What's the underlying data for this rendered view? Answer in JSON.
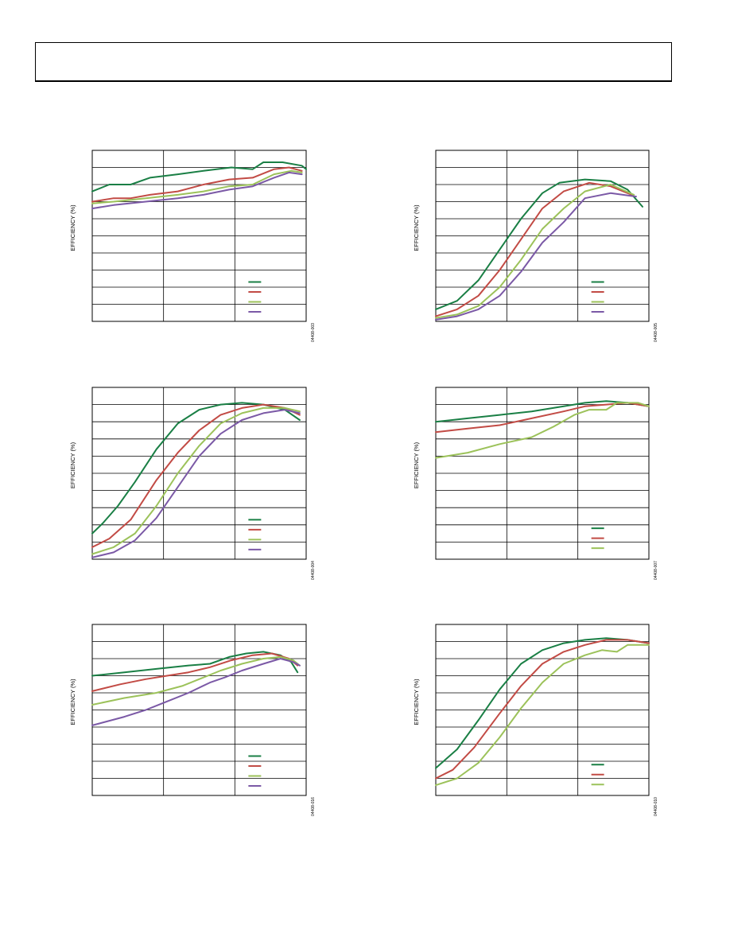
{
  "colors": {
    "green": "#1a7f45",
    "red": "#c24b45",
    "lime": "#9cc25a",
    "purple": "#7b59a6",
    "grid": "#000000"
  },
  "chart_data": [
    {
      "type": "line",
      "ylabel": "EFFICIENCY (%)",
      "figure_code": "04408-003",
      "series": [
        {
          "color": "green",
          "points": [
            [
              0,
              76
            ],
            [
              0.08,
              80
            ],
            [
              0.18,
              80
            ],
            [
              0.27,
              84
            ],
            [
              0.4,
              86
            ],
            [
              0.52,
              88
            ],
            [
              0.65,
              90
            ],
            [
              0.75,
              89
            ],
            [
              0.8,
              93
            ],
            [
              0.89,
              93
            ],
            [
              0.98,
              91
            ],
            [
              1,
              89
            ]
          ]
        },
        {
          "color": "red",
          "points": [
            [
              0,
              70
            ],
            [
              0.1,
              72
            ],
            [
              0.18,
              72
            ],
            [
              0.27,
              74
            ],
            [
              0.4,
              76
            ],
            [
              0.52,
              80
            ],
            [
              0.64,
              83
            ],
            [
              0.75,
              84
            ],
            [
              0.85,
              89
            ],
            [
              0.92,
              90
            ],
            [
              0.98,
              88
            ]
          ]
        },
        {
          "color": "lime",
          "points": [
            [
              0,
              69
            ],
            [
              0.1,
              70
            ],
            [
              0.25,
              72
            ],
            [
              0.4,
              74
            ],
            [
              0.52,
              76
            ],
            [
              0.64,
              79
            ],
            [
              0.75,
              80
            ],
            [
              0.85,
              86
            ],
            [
              0.93,
              88
            ],
            [
              0.98,
              87
            ]
          ]
        },
        {
          "color": "purple",
          "points": [
            [
              0,
              66
            ],
            [
              0.1,
              68
            ],
            [
              0.25,
              70
            ],
            [
              0.4,
              72
            ],
            [
              0.52,
              74
            ],
            [
              0.64,
              77
            ],
            [
              0.75,
              79
            ],
            [
              0.85,
              84
            ],
            [
              0.92,
              87
            ],
            [
              0.98,
              86
            ]
          ]
        }
      ],
      "legend": {
        "entries": 4,
        "position": "bottom-right"
      }
    },
    {
      "type": "line",
      "ylabel": "EFFICIENCY (%)",
      "figure_code": "04408-005",
      "series": [
        {
          "color": "green",
          "points": [
            [
              0,
              7
            ],
            [
              0.1,
              12
            ],
            [
              0.2,
              24
            ],
            [
              0.3,
              42
            ],
            [
              0.4,
              60
            ],
            [
              0.5,
              75
            ],
            [
              0.58,
              81
            ],
            [
              0.7,
              83
            ],
            [
              0.82,
              82
            ],
            [
              0.9,
              77
            ],
            [
              0.97,
              67
            ]
          ]
        },
        {
          "color": "red",
          "points": [
            [
              0,
              3
            ],
            [
              0.1,
              7
            ],
            [
              0.2,
              15
            ],
            [
              0.3,
              30
            ],
            [
              0.4,
              48
            ],
            [
              0.5,
              66
            ],
            [
              0.6,
              76
            ],
            [
              0.72,
              81
            ],
            [
              0.82,
              79
            ],
            [
              0.92,
              74
            ]
          ]
        },
        {
          "color": "lime",
          "points": [
            [
              0,
              2
            ],
            [
              0.1,
              4
            ],
            [
              0.2,
              9
            ],
            [
              0.3,
              20
            ],
            [
              0.4,
              36
            ],
            [
              0.5,
              54
            ],
            [
              0.6,
              66
            ],
            [
              0.7,
              76
            ],
            [
              0.82,
              80
            ],
            [
              0.93,
              74
            ]
          ]
        },
        {
          "color": "purple",
          "points": [
            [
              0,
              1
            ],
            [
              0.1,
              3
            ],
            [
              0.2,
              7
            ],
            [
              0.3,
              15
            ],
            [
              0.4,
              29
            ],
            [
              0.5,
              46
            ],
            [
              0.6,
              58
            ],
            [
              0.7,
              72
            ],
            [
              0.82,
              75
            ],
            [
              0.94,
              73
            ]
          ]
        }
      ],
      "legend": {
        "entries": 4,
        "position": "bottom-right"
      }
    },
    {
      "type": "line",
      "ylabel": "EFFICIENCY (%)",
      "figure_code": "04408-004",
      "series": [
        {
          "color": "green",
          "points": [
            [
              0,
              15
            ],
            [
              0.05,
              21
            ],
            [
              0.12,
              31
            ],
            [
              0.2,
              45
            ],
            [
              0.3,
              64
            ],
            [
              0.4,
              79
            ],
            [
              0.5,
              87
            ],
            [
              0.6,
              90
            ],
            [
              0.7,
              91
            ],
            [
              0.8,
              90
            ],
            [
              0.9,
              87
            ],
            [
              0.97,
              81
            ]
          ]
        },
        {
          "color": "red",
          "points": [
            [
              0,
              7
            ],
            [
              0.08,
              12
            ],
            [
              0.18,
              23
            ],
            [
              0.3,
              46
            ],
            [
              0.4,
              62
            ],
            [
              0.5,
              75
            ],
            [
              0.6,
              84
            ],
            [
              0.7,
              88
            ],
            [
              0.8,
              90
            ],
            [
              0.9,
              88
            ],
            [
              0.97,
              84
            ]
          ]
        },
        {
          "color": "lime",
          "points": [
            [
              0,
              3
            ],
            [
              0.1,
              7
            ],
            [
              0.2,
              15
            ],
            [
              0.3,
              31
            ],
            [
              0.4,
              50
            ],
            [
              0.5,
              66
            ],
            [
              0.6,
              79
            ],
            [
              0.7,
              85
            ],
            [
              0.8,
              88
            ],
            [
              0.9,
              88
            ],
            [
              0.97,
              86
            ]
          ]
        },
        {
          "color": "purple",
          "points": [
            [
              0,
              1
            ],
            [
              0.1,
              4
            ],
            [
              0.2,
              11
            ],
            [
              0.3,
              24
            ],
            [
              0.4,
              42
            ],
            [
              0.5,
              60
            ],
            [
              0.6,
              73
            ],
            [
              0.7,
              81
            ],
            [
              0.8,
              85
            ],
            [
              0.9,
              87
            ],
            [
              0.97,
              85
            ]
          ]
        }
      ],
      "legend": {
        "entries": 4,
        "position": "bottom-right"
      }
    },
    {
      "type": "line",
      "ylabel": "EFFICIENCY (%)",
      "figure_code": "04408-007",
      "series": [
        {
          "color": "green",
          "points": [
            [
              0,
              80
            ],
            [
              0.15,
              82
            ],
            [
              0.3,
              84
            ],
            [
              0.45,
              86
            ],
            [
              0.6,
              89
            ],
            [
              0.7,
              91
            ],
            [
              0.8,
              92
            ],
            [
              0.9,
              91
            ],
            [
              1,
              89
            ]
          ]
        },
        {
          "color": "red",
          "points": [
            [
              0,
              74
            ],
            [
              0.15,
              76
            ],
            [
              0.3,
              78
            ],
            [
              0.45,
              82
            ],
            [
              0.6,
              86
            ],
            [
              0.7,
              89
            ],
            [
              0.8,
              90
            ],
            [
              0.9,
              91
            ],
            [
              1,
              89
            ]
          ]
        },
        {
          "color": "lime",
          "points": [
            [
              0,
              59
            ],
            [
              0.15,
              62
            ],
            [
              0.3,
              67
            ],
            [
              0.45,
              71
            ],
            [
              0.55,
              77
            ],
            [
              0.65,
              84
            ],
            [
              0.72,
              87
            ],
            [
              0.8,
              87
            ],
            [
              0.85,
              91
            ],
            [
              0.95,
              91
            ],
            [
              1,
              89
            ]
          ]
        }
      ],
      "legend": {
        "entries": 3,
        "position": "bottom-right"
      }
    },
    {
      "type": "line",
      "ylabel": "EFFICIENCY (%)",
      "figure_code": "04408-016",
      "series": [
        {
          "color": "green",
          "points": [
            [
              0,
              70
            ],
            [
              0.15,
              72
            ],
            [
              0.3,
              74
            ],
            [
              0.45,
              76
            ],
            [
              0.55,
              77
            ],
            [
              0.64,
              81
            ],
            [
              0.72,
              83
            ],
            [
              0.8,
              84
            ],
            [
              0.88,
              82
            ],
            [
              0.93,
              78
            ],
            [
              0.96,
              72
            ]
          ]
        },
        {
          "color": "red",
          "points": [
            [
              0,
              61
            ],
            [
              0.13,
              65
            ],
            [
              0.25,
              68
            ],
            [
              0.35,
              70
            ],
            [
              0.45,
              72
            ],
            [
              0.55,
              75
            ],
            [
              0.65,
              79
            ],
            [
              0.75,
              82
            ],
            [
              0.84,
              83
            ],
            [
              0.92,
              80
            ],
            [
              0.96,
              76
            ]
          ]
        },
        {
          "color": "lime",
          "points": [
            [
              0,
              53
            ],
            [
              0.15,
              57
            ],
            [
              0.3,
              60
            ],
            [
              0.42,
              64
            ],
            [
              0.5,
              68
            ],
            [
              0.6,
              73
            ],
            [
              0.7,
              77
            ],
            [
              0.8,
              80
            ],
            [
              0.88,
              81
            ],
            [
              0.94,
              79
            ],
            [
              0.97,
              76
            ]
          ]
        },
        {
          "color": "purple",
          "points": [
            [
              0,
              41
            ],
            [
              0.15,
              46
            ],
            [
              0.25,
              50
            ],
            [
              0.35,
              55
            ],
            [
              0.45,
              60
            ],
            [
              0.55,
              66
            ],
            [
              0.62,
              69
            ],
            [
              0.7,
              73
            ],
            [
              0.8,
              77
            ],
            [
              0.88,
              80
            ],
            [
              0.94,
              78
            ],
            [
              0.97,
              76
            ]
          ]
        }
      ],
      "legend": {
        "entries": 4,
        "position": "bottom-right"
      }
    },
    {
      "type": "line",
      "ylabel": "EFFICIENCY (%)",
      "figure_code": "04408-010",
      "series": [
        {
          "color": "green",
          "points": [
            [
              0,
              16
            ],
            [
              0.1,
              27
            ],
            [
              0.2,
              44
            ],
            [
              0.3,
              62
            ],
            [
              0.4,
              77
            ],
            [
              0.5,
              85
            ],
            [
              0.6,
              89
            ],
            [
              0.7,
              91
            ],
            [
              0.8,
              92
            ],
            [
              0.9,
              91
            ],
            [
              1,
              89
            ]
          ]
        },
        {
          "color": "red",
          "points": [
            [
              0,
              10
            ],
            [
              0.08,
              15
            ],
            [
              0.18,
              28
            ],
            [
              0.3,
              48
            ],
            [
              0.4,
              64
            ],
            [
              0.5,
              77
            ],
            [
              0.6,
              84
            ],
            [
              0.7,
              88
            ],
            [
              0.8,
              91
            ],
            [
              0.9,
              91
            ],
            [
              1,
              89
            ]
          ]
        },
        {
          "color": "lime",
          "points": [
            [
              0,
              6
            ],
            [
              0.1,
              10
            ],
            [
              0.2,
              19
            ],
            [
              0.3,
              34
            ],
            [
              0.4,
              51
            ],
            [
              0.5,
              66
            ],
            [
              0.6,
              77
            ],
            [
              0.7,
              82
            ],
            [
              0.78,
              85
            ],
            [
              0.85,
              84
            ],
            [
              0.9,
              88
            ],
            [
              1,
              88
            ]
          ]
        }
      ],
      "legend": {
        "entries": 3,
        "position": "bottom-right"
      }
    }
  ]
}
